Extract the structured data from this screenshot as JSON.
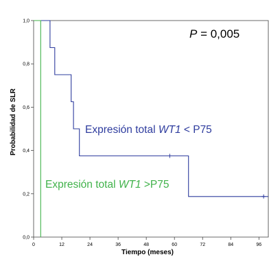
{
  "chart_data": {
    "type": "line",
    "subtype": "kaplan-meier",
    "xlabel": "Tiempo (meses)",
    "ylabel": "Probabilidad de SLR",
    "xlim": [
      0,
      100
    ],
    "ylim": [
      0,
      1.0
    ],
    "x_ticks": [
      0,
      12,
      24,
      36,
      48,
      60,
      72,
      84,
      96
    ],
    "y_ticks": [
      0.0,
      0.2,
      0.4,
      0.6,
      0.8,
      1.0
    ],
    "y_tick_labels": [
      "0,0",
      "0,2",
      "0,4",
      "0,6",
      "0,8",
      "1,0"
    ],
    "grid": false,
    "series": [
      {
        "name_parts": [
          "Expresión total ",
          "WT1",
          " < P75"
        ],
        "color": "#2e3c9e",
        "steps": [
          [
            0,
            1.0
          ],
          [
            7,
            1.0
          ],
          [
            7,
            0.875
          ],
          [
            9,
            0.875
          ],
          [
            9,
            0.75
          ],
          [
            16,
            0.75
          ],
          [
            16,
            0.625
          ],
          [
            17,
            0.625
          ],
          [
            17,
            0.5
          ],
          [
            19.5,
            0.5
          ],
          [
            19.5,
            0.375
          ],
          [
            66,
            0.375
          ],
          [
            66,
            0.1875
          ],
          [
            100,
            0.1875
          ]
        ],
        "censored": [
          [
            58,
            0.375
          ],
          [
            98,
            0.1875
          ]
        ]
      },
      {
        "name_parts": [
          "Expresión total ",
          "WT1",
          " >P75"
        ],
        "color": "#40b24a",
        "steps": [
          [
            0,
            1.0
          ],
          [
            3,
            1.0
          ],
          [
            3,
            0.0
          ]
        ],
        "censored": []
      }
    ],
    "annotations": {
      "p_value_label": "P",
      "p_value_text": " = 0,005"
    }
  }
}
